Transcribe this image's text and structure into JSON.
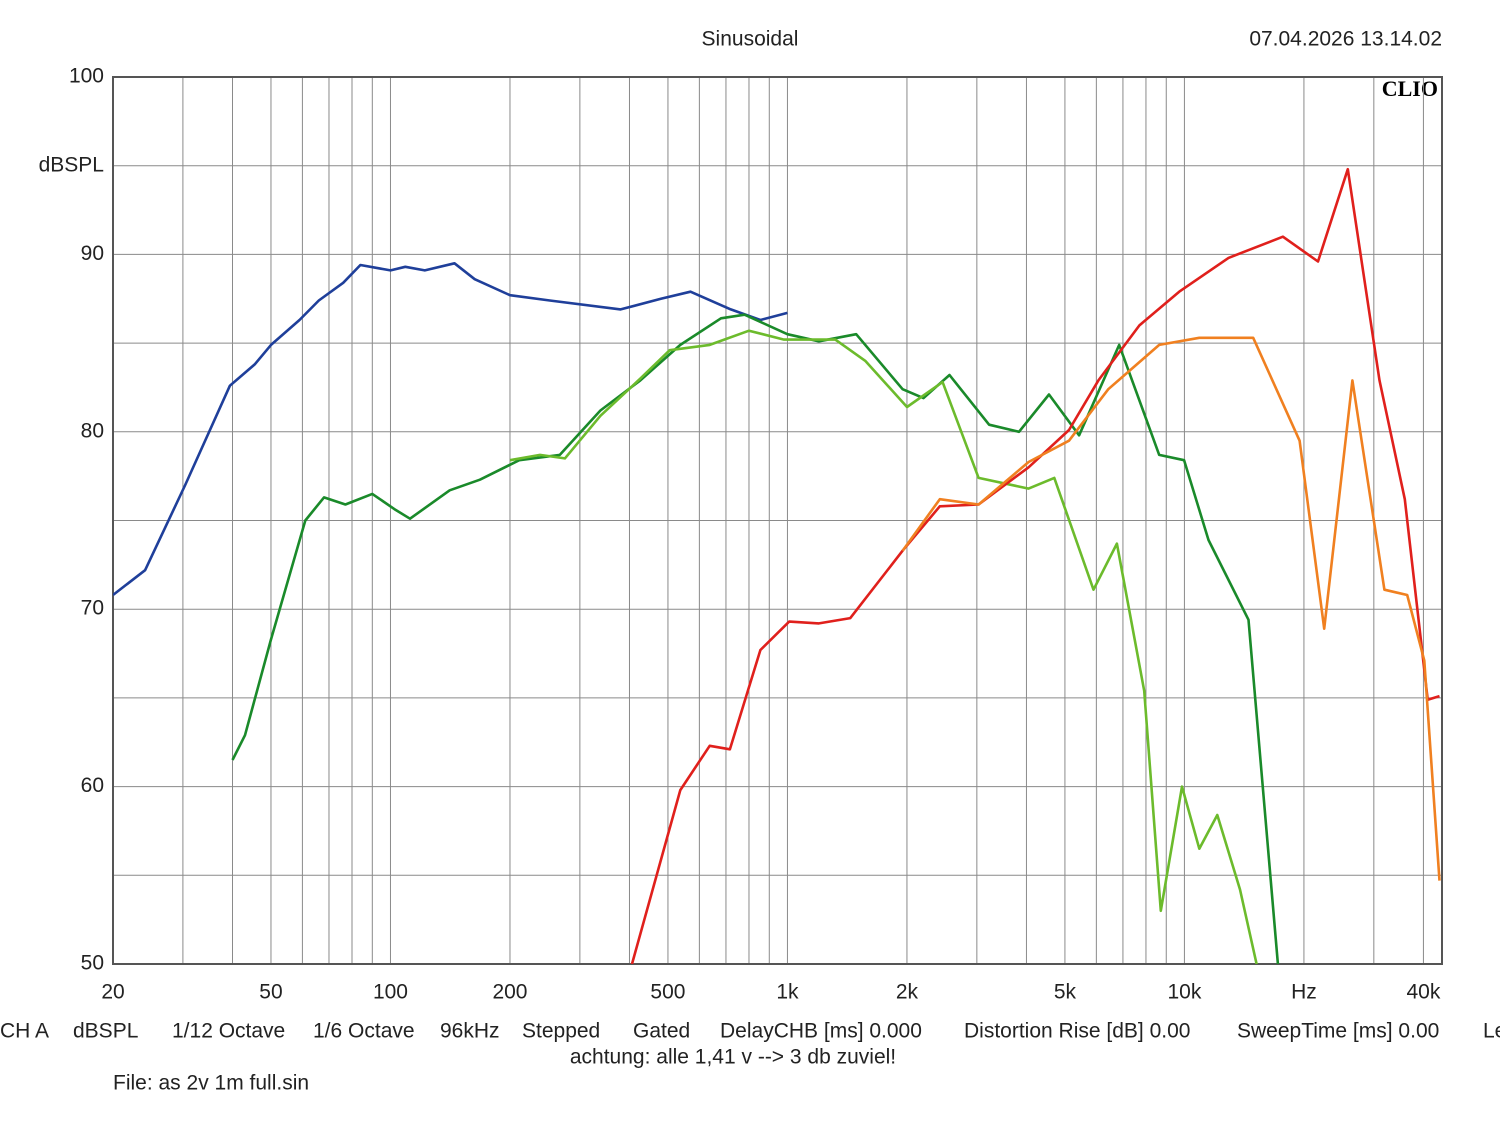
{
  "chart_data": {
    "type": "line",
    "title": "Sinusoidal",
    "timestamp": "07.04.2026 13.14.02",
    "logo": "CLIO",
    "y_label": "dBSPL",
    "log_x": true,
    "grid": true,
    "xlim": [
      20,
      44550
    ],
    "ylim": [
      50,
      100
    ],
    "xticks": [
      20,
      50,
      100,
      200,
      500,
      {
        "value": 1000,
        "label": "1k"
      },
      {
        "value": 2000,
        "label": "2k"
      },
      {
        "value": 5000,
        "label": "5k"
      },
      {
        "value": 10000,
        "label": "10k"
      },
      {
        "value": 20000,
        "label": "Hz"
      },
      {
        "value": 40000,
        "label": "40k"
      }
    ],
    "x_minor_grid": [
      30,
      40,
      60,
      70,
      80,
      90,
      300,
      400,
      600,
      700,
      800,
      900,
      3000,
      4000,
      6000,
      7000,
      8000,
      9000,
      30000
    ],
    "yticks": [
      50,
      60,
      70,
      80,
      90,
      100
    ],
    "y_minor_grid": [
      55,
      65,
      75,
      85,
      95
    ],
    "series": [
      {
        "color": "#1f3f9a",
        "x": [
          20,
          24.1,
          30.4,
          39.4,
          45.5,
          50,
          59,
          66,
          76,
          84,
          100,
          109,
          122,
          145,
          163,
          200,
          252,
          380,
          480,
          570,
          720,
          855,
          1000
        ],
        "values": [
          70.8,
          72.2,
          77,
          82.6,
          83.8,
          84.9,
          86.3,
          87.4,
          88.4,
          89.4,
          89.1,
          89.3,
          89.1,
          89.5,
          88.6,
          87.7,
          87.4,
          86.9,
          87.5,
          87.9,
          86.9,
          86.3,
          86.7
        ]
      },
      {
        "color": "#1a8a2a",
        "x": [
          40,
          43,
          50,
          61,
          68,
          77,
          90,
          103,
          112,
          141,
          168,
          211,
          267,
          338,
          426,
          537,
          680,
          780,
          1000,
          1200,
          1490,
          1950,
          2200,
          2560,
          3220,
          3830,
          4560,
          5430,
          6850,
          8640,
          9980,
          11500,
          14500,
          17200
        ],
        "values": [
          61.5,
          62.9,
          68.3,
          75,
          76.3,
          75.9,
          76.5,
          75.6,
          75.1,
          76.7,
          77.3,
          78.4,
          78.7,
          81.2,
          82.9,
          84.9,
          86.4,
          86.6,
          85.5,
          85.1,
          85.5,
          82.4,
          81.9,
          83.2,
          80.4,
          80,
          82.1,
          79.8,
          84.9,
          78.7,
          78.4,
          73.9,
          69.4,
          50
        ]
      },
      {
        "color": "#6cbb2c",
        "x": [
          200,
          238,
          275,
          338,
          426,
          505,
          637,
          800,
          980,
          1320,
          1570,
          2000,
          2460,
          3030,
          4050,
          4700,
          5900,
          6760,
          7920,
          8720,
          9860,
          10900,
          12100,
          13800,
          15200
        ],
        "values": [
          78.4,
          78.7,
          78.5,
          80.9,
          83,
          84.6,
          84.9,
          85.7,
          85.2,
          85.2,
          84,
          81.4,
          82.8,
          77.4,
          76.8,
          77.4,
          71.1,
          73.7,
          65.4,
          53,
          60,
          56.5,
          58.4,
          54.2,
          50
        ]
      },
      {
        "color": "#e0201c",
        "x": [
          406,
          537,
          637,
          716,
          855,
          1010,
          1200,
          1440,
          1950,
          2420,
          3030,
          4050,
          5120,
          6070,
          7700,
          9700,
          12910,
          17700,
          21700,
          25800,
          31000,
          35900,
          41000,
          43900
        ],
        "values": [
          50,
          59.8,
          62.3,
          62.1,
          67.7,
          69.3,
          69.2,
          69.5,
          73.3,
          75.8,
          75.9,
          78,
          80.1,
          82.9,
          86,
          87.9,
          89.8,
          91,
          89.6,
          94.8,
          82.9,
          76.2,
          64.9,
          65.1
        ]
      },
      {
        "color": "#f08020",
        "x": [
          1950,
          2420,
          3030,
          4050,
          5120,
          6430,
          8640,
          10900,
          14900,
          19500,
          22500,
          26500,
          31900,
          36400,
          40200,
          43900
        ],
        "values": [
          73.3,
          76.2,
          75.9,
          78.3,
          79.5,
          82.4,
          84.9,
          85.3,
          85.3,
          79.5,
          68.9,
          82.9,
          71.1,
          70.8,
          67.1,
          54.7
        ]
      }
    ],
    "footer_items": [
      "CH A",
      "dBSPL",
      "1/12 Octave",
      "1/6 Octave",
      "96kHz",
      "Stepped",
      "Gated",
      "DelayCHB [ms] 0.000",
      "Distortion Rise [dB] 0.00",
      "SweepTime [ms] 0.00",
      "Le"
    ],
    "note": "achtung: alle 1,41 v --> 3 db zuviel!",
    "file": "File: as 2v 1m full.sin"
  }
}
